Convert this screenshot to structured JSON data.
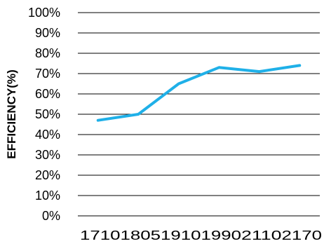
{
  "chart_data": {
    "type": "line",
    "title": "",
    "xlabel": "",
    "ylabel": "EFFICIENCY(%)",
    "ylim": [
      0,
      100
    ],
    "y_ticks": [
      "0%",
      "10%",
      "20%",
      "30%",
      "40%",
      "50%",
      "60%",
      "70%",
      "80%",
      "90%",
      "100%"
    ],
    "categories": [
      "1710",
      "1805",
      "1910",
      "1990",
      "2110",
      "2170"
    ],
    "series": [
      {
        "values": [
          47,
          50,
          65,
          73,
          71,
          74
        ]
      }
    ],
    "grid": true,
    "legend": "none",
    "colors": {
      "line": "#1fb0e8",
      "grid": "#000000",
      "text": "#000000"
    }
  }
}
